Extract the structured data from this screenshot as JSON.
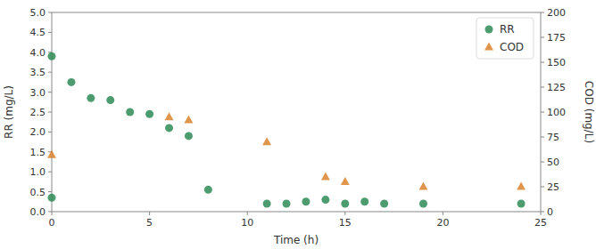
{
  "chart_data": {
    "type": "scatter",
    "x_label": "Time (h)",
    "y_label": "RR (mg/L)",
    "y2_label": "COD (mg/L)",
    "xlim": [
      0,
      25
    ],
    "xticks": [
      0,
      5,
      10,
      15,
      20,
      25
    ],
    "ylim": [
      0,
      5.0
    ],
    "yticks": [
      {
        "value": 0.0,
        "label": "0.0"
      },
      0.5,
      {
        "value": 1.0,
        "label": "1.0"
      },
      1.5,
      {
        "value": 2.0,
        "label": "2.0"
      },
      2.5,
      {
        "value": 3.0,
        "label": "3.0"
      },
      3.5,
      {
        "value": 4.0,
        "label": "4.0"
      },
      4.5,
      {
        "value": 5.0,
        "label": "5.0"
      }
    ],
    "y2lim": [
      0,
      200
    ],
    "y2ticks": [
      0,
      25,
      50,
      75,
      100,
      125,
      150,
      175,
      200
    ],
    "grid": false,
    "legend": "upper right",
    "series": [
      {
        "name": "RR",
        "color": "#2e8b57",
        "marker": "circle",
        "x": [
          0,
          0,
          1,
          2,
          3,
          4,
          5,
          6,
          7,
          8,
          11,
          12,
          13,
          14,
          15,
          16,
          17,
          19,
          24
        ],
        "values": [
          3.9,
          0.35,
          3.25,
          2.85,
          2.8,
          2.5,
          2.45,
          2.1,
          1.9,
          0.55,
          0.2,
          0.2,
          0.25,
          0.3,
          0.2,
          0.25,
          0.2,
          0.2,
          0.2
        ]
      },
      {
        "name": "COD",
        "color": "#d9822b",
        "marker": "triangle",
        "axis": "y2",
        "x": [
          0,
          6,
          7,
          11,
          14,
          15,
          19,
          24
        ],
        "values": [
          57,
          95,
          92,
          70,
          35,
          30,
          25,
          25
        ]
      }
    ]
  }
}
